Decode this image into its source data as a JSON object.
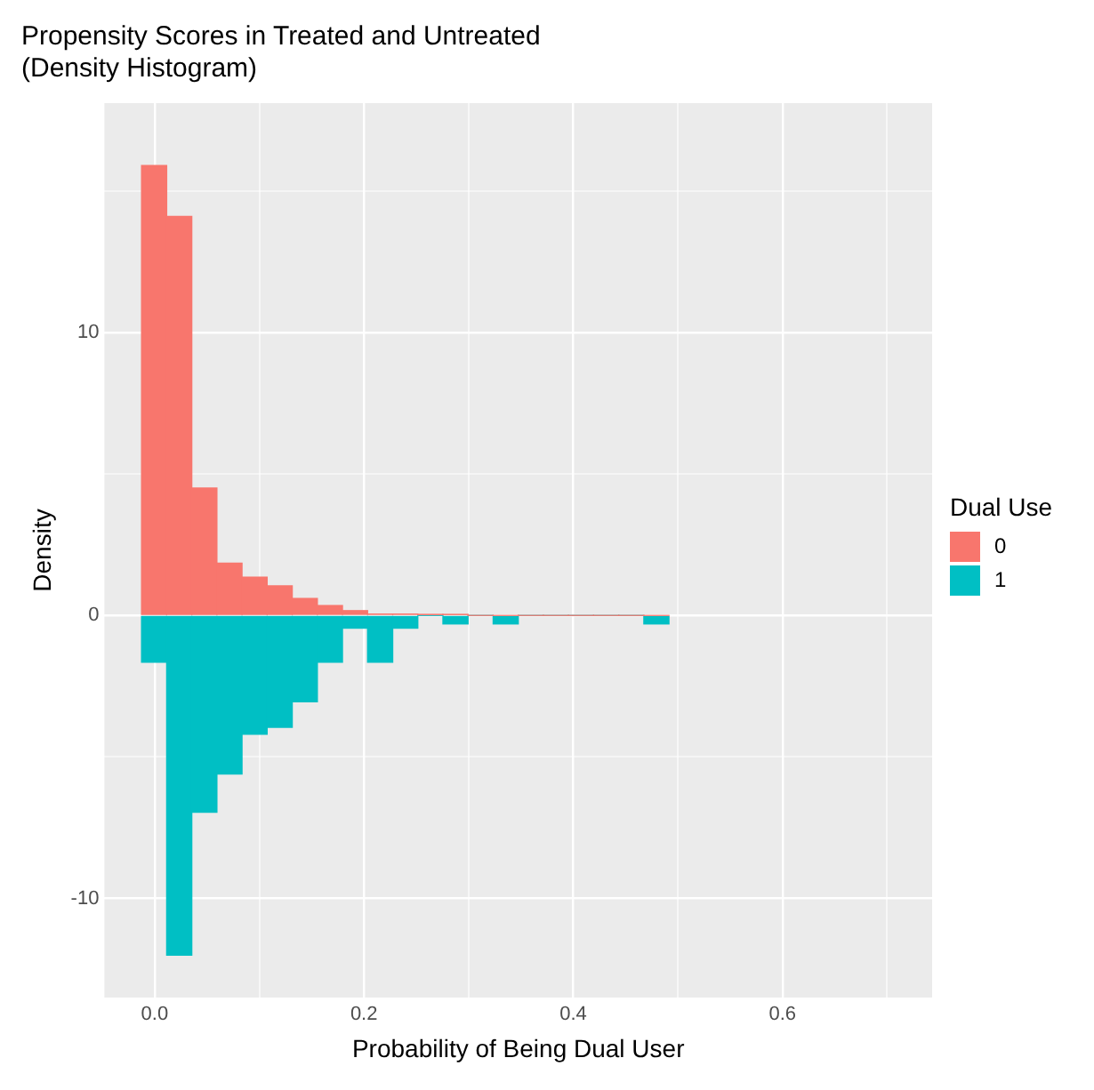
{
  "chart_data": {
    "type": "histogram",
    "title": "Propensity Scores in Treated and Untreated\n(Density Histogram)",
    "xlabel": "Probability of Being Dual User",
    "ylabel": "Density",
    "legend_title": "Dual Use",
    "legend": "right",
    "grid": true,
    "bins": [
      -0.0125,
      0.0115,
      0.0355,
      0.0595,
      0.0835,
      0.1075,
      0.1315,
      0.1555,
      0.1795,
      0.2035,
      0.2275,
      0.2515,
      0.2755,
      0.2995,
      0.3235,
      0.3475,
      0.3715,
      0.3955,
      0.4195,
      0.4435,
      0.4675,
      0.4915
    ],
    "series": [
      {
        "name": "0",
        "color": "#f8766d",
        "values": [
          15.9,
          14.1,
          4.5,
          1.85,
          1.35,
          1.05,
          0.6,
          0.35,
          0.17,
          0.05,
          0.05,
          0.03,
          0.03,
          0,
          0,
          0,
          0,
          0,
          0,
          0,
          0
        ]
      },
      {
        "name": "1",
        "color": "#00bfc4",
        "values": [
          -1.65,
          -12,
          -6.95,
          -5.6,
          -4.2,
          -3.95,
          -3.05,
          -1.65,
          -0.45,
          -1.65,
          -0.45,
          0,
          -0.3,
          0,
          -0.3,
          0,
          0,
          0,
          0,
          0,
          -0.3
        ]
      }
    ],
    "xlim": [
      -0.048,
      0.743
    ],
    "ylim": [
      -13.5,
      18.1
    ],
    "xticks": [
      {
        "value": 0,
        "label": "0.0"
      },
      {
        "value": 0.1,
        "label": null
      },
      {
        "value": 0.2,
        "label": "0.2"
      },
      {
        "value": 0.3,
        "label": null
      },
      {
        "value": 0.4,
        "label": "0.4"
      },
      {
        "value": 0.5,
        "label": null
      },
      {
        "value": 0.6,
        "label": "0.6"
      },
      {
        "value": 0.7,
        "label": null
      }
    ],
    "yticks": [
      {
        "value": -10,
        "label": "-10"
      },
      {
        "value": -5,
        "label": null
      },
      {
        "value": 0,
        "label": "0"
      },
      {
        "value": 5,
        "label": null
      },
      {
        "value": 10,
        "label": "10"
      },
      {
        "value": 15,
        "label": null
      }
    ]
  }
}
